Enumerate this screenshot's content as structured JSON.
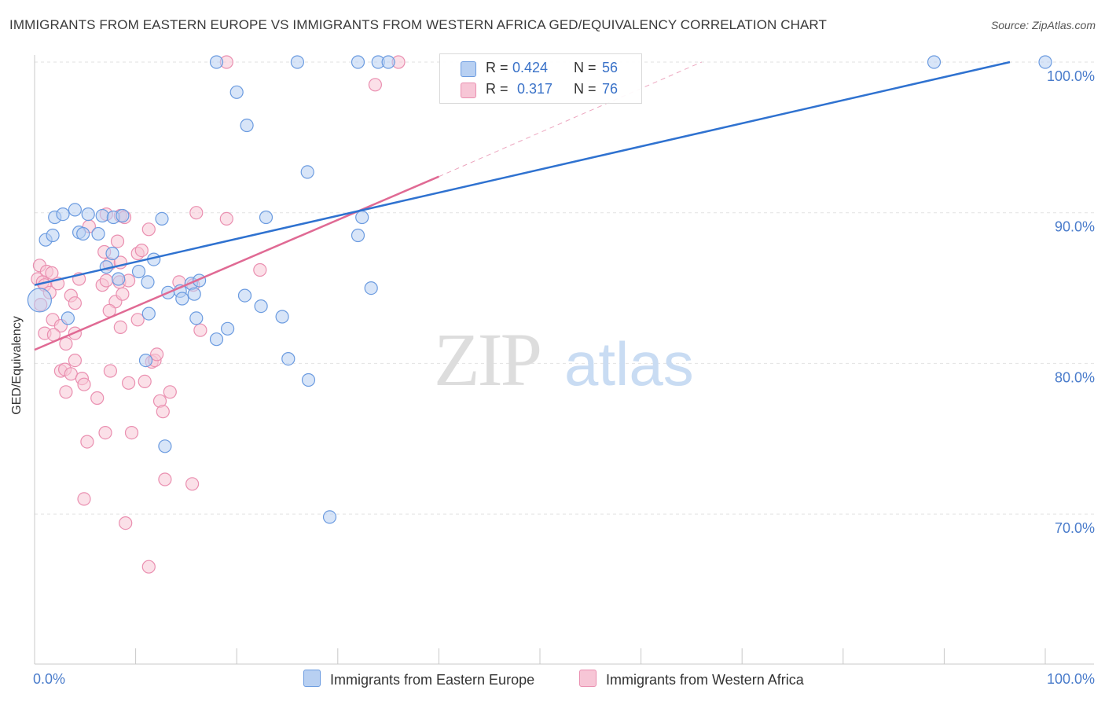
{
  "title": "IMMIGRANTS FROM EASTERN EUROPE VS IMMIGRANTS FROM WESTERN AFRICA GED/EQUIVALENCY CORRELATION CHART",
  "source": "Source: ZipAtlas.com",
  "watermark": {
    "zip": "ZIP",
    "atlas": "atlas"
  },
  "colors": {
    "blue_fill": "#b8d0f2",
    "blue_stroke": "#6b9be0",
    "blue_line": "#2f72d0",
    "pink_fill": "#f7c6d6",
    "pink_stroke": "#ea8fb0",
    "pink_line": "#e06a94",
    "axis_label": "#4a7ccb",
    "grid": "#e2e2e2"
  },
  "legend": {
    "rows": [
      {
        "r_label": "R =",
        "r_value": "0.424",
        "n_label": "N =",
        "n_value": "56"
      },
      {
        "r_label": "R =",
        "r_value": "0.317",
        "n_label": "N =",
        "n_value": "76"
      }
    ]
  },
  "chart_data": {
    "type": "scatter",
    "title": "IMMIGRANTS FROM EASTERN EUROPE VS IMMIGRANTS FROM WESTERN AFRICA GED/EQUIVALENCY CORRELATION CHART",
    "xlabel": "",
    "ylabel": "GED/Equivalency",
    "xlim": [
      0,
      100
    ],
    "ylim": [
      60,
      101.5
    ],
    "x_tick_labels": [
      {
        "value": 0,
        "label": "0.0%"
      },
      {
        "value": 100,
        "label": "100.0%"
      }
    ],
    "y_tick_labels": [
      {
        "value": 70,
        "label": "70.0%"
      },
      {
        "value": 80,
        "label": "80.0%"
      },
      {
        "value": 90,
        "label": "90.0%"
      },
      {
        "value": 100,
        "label": "100.0%"
      }
    ],
    "series": [
      {
        "name": "Immigrants from Eastern Europe",
        "color": "blue",
        "r": 0.424,
        "n": 56,
        "trend": {
          "x": [
            0,
            96.5
          ],
          "y": [
            85.2,
            100.0
          ]
        },
        "points": [
          [
            18,
            100
          ],
          [
            26,
            100
          ],
          [
            32,
            100
          ],
          [
            34,
            100
          ],
          [
            35,
            100
          ],
          [
            89,
            100
          ],
          [
            100,
            100
          ],
          [
            20,
            98
          ],
          [
            21,
            95.8
          ],
          [
            27,
            92.7
          ],
          [
            1.1,
            88.2
          ],
          [
            1.8,
            88.5
          ],
          [
            2,
            89.7
          ],
          [
            2.8,
            89.9
          ],
          [
            4,
            90.2
          ],
          [
            4.4,
            88.7
          ],
          [
            4.8,
            88.6
          ],
          [
            5.3,
            89.9
          ],
          [
            6.3,
            88.6
          ],
          [
            6.7,
            89.8
          ],
          [
            7.8,
            89.7
          ],
          [
            8.7,
            89.8
          ],
          [
            12.6,
            89.6
          ],
          [
            22.9,
            89.7
          ],
          [
            32.4,
            89.7
          ],
          [
            32,
            88.5
          ],
          [
            7.7,
            87.3
          ],
          [
            11.8,
            86.9
          ],
          [
            7.1,
            86.4
          ],
          [
            10.3,
            86.1
          ],
          [
            8.3,
            85.6
          ],
          [
            11.2,
            85.4
          ],
          [
            15.5,
            85.3
          ],
          [
            16.3,
            85.5
          ],
          [
            13.2,
            84.7
          ],
          [
            14.4,
            84.8
          ],
          [
            14.6,
            84.3
          ],
          [
            15.8,
            84.6
          ],
          [
            20.8,
            84.5
          ],
          [
            22.4,
            83.8
          ],
          [
            11.3,
            83.3
          ],
          [
            24.5,
            83.1
          ],
          [
            16,
            83
          ],
          [
            3.3,
            83
          ],
          [
            19.1,
            82.3
          ],
          [
            18,
            81.6
          ],
          [
            33.3,
            85
          ],
          [
            11,
            80.2
          ],
          [
            25.1,
            80.3
          ],
          [
            27.1,
            78.9
          ],
          [
            12.9,
            74.5
          ],
          [
            29.2,
            69.8
          ],
          [
            0.5,
            84.2
          ]
        ]
      },
      {
        "name": "Immigrants from Western Africa",
        "color": "pink",
        "r": 0.317,
        "n": 76,
        "trend": {
          "x": [
            0,
            40
          ],
          "y": [
            80.9,
            92.4
          ]
        },
        "trend_dashed": {
          "x": [
            40,
            66
          ],
          "y": [
            92.4,
            100.0
          ]
        },
        "points": [
          [
            19,
            100
          ],
          [
            36,
            100
          ],
          [
            33.7,
            98.5
          ],
          [
            16,
            90
          ],
          [
            19,
            89.6
          ],
          [
            8.5,
            89.8
          ],
          [
            8.9,
            89.7
          ],
          [
            7.1,
            89.9
          ],
          [
            11.3,
            88.9
          ],
          [
            5.4,
            89.1
          ],
          [
            8.2,
            88.1
          ],
          [
            0.5,
            86.5
          ],
          [
            1.2,
            86.1
          ],
          [
            1.7,
            86
          ],
          [
            0.3,
            85.6
          ],
          [
            0.8,
            85.4
          ],
          [
            1,
            85.2
          ],
          [
            2.3,
            85.3
          ],
          [
            4.4,
            85.6
          ],
          [
            6.7,
            85.2
          ],
          [
            6.9,
            87.4
          ],
          [
            7.4,
            86.6
          ],
          [
            8.5,
            86.7
          ],
          [
            10.2,
            87.3
          ],
          [
            10.6,
            87.5
          ],
          [
            22.3,
            86.2
          ],
          [
            7.1,
            85.5
          ],
          [
            8.4,
            85.4
          ],
          [
            9.3,
            85.5
          ],
          [
            14.3,
            85.4
          ],
          [
            15.7,
            85.2
          ],
          [
            1.5,
            84.7
          ],
          [
            3.6,
            84.5
          ],
          [
            4,
            84
          ],
          [
            8,
            84.1
          ],
          [
            8.7,
            84.6
          ],
          [
            0.6,
            83.9
          ],
          [
            7.4,
            83.5
          ],
          [
            10.2,
            82.9
          ],
          [
            1.8,
            82.9
          ],
          [
            2.6,
            82.5
          ],
          [
            8.5,
            82.4
          ],
          [
            16.4,
            82.2
          ],
          [
            1,
            82
          ],
          [
            1.9,
            81.9
          ],
          [
            4,
            82
          ],
          [
            3.1,
            81.3
          ],
          [
            11.6,
            80.1
          ],
          [
            11.9,
            80.2
          ],
          [
            12.1,
            80.6
          ],
          [
            4,
            80.2
          ],
          [
            2.6,
            79.5
          ],
          [
            3,
            79.6
          ],
          [
            3.6,
            79.3
          ],
          [
            7.5,
            79.5
          ],
          [
            4.7,
            79
          ],
          [
            4.9,
            78.6
          ],
          [
            9.3,
            78.7
          ],
          [
            10.9,
            78.8
          ],
          [
            3.1,
            78.1
          ],
          [
            13.4,
            78.1
          ],
          [
            12.4,
            77.5
          ],
          [
            6.2,
            77.7
          ],
          [
            12.7,
            76.8
          ],
          [
            7,
            75.4
          ],
          [
            9.6,
            75.4
          ],
          [
            5.2,
            74.8
          ],
          [
            12.9,
            72.3
          ],
          [
            15.6,
            72
          ],
          [
            4.9,
            71
          ],
          [
            9,
            69.4
          ],
          [
            11.3,
            66.5
          ]
        ]
      }
    ]
  }
}
